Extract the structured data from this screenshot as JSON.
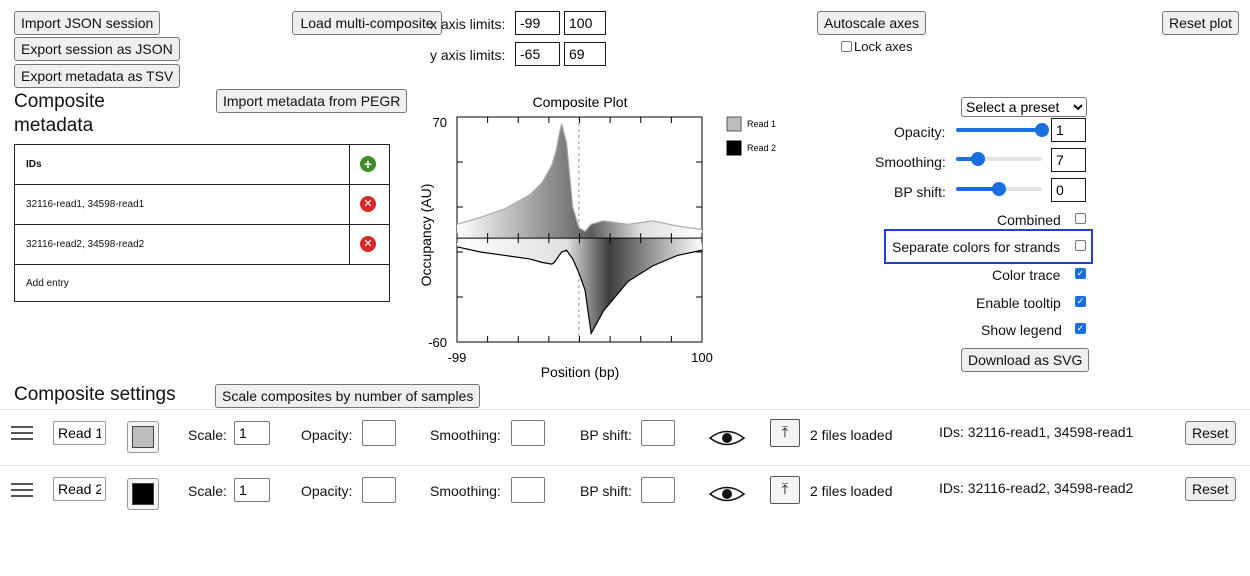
{
  "toolbar": {
    "import_json": "Import JSON session",
    "export_json": "Export session as JSON",
    "export_tsv": "Export metadata as TSV",
    "load_multi": "Load multi-composite",
    "autoscale": "Autoscale axes",
    "lock_axes": "Lock axes",
    "reset_plot": "Reset plot"
  },
  "axis_limits": {
    "x_label": "x axis limits:",
    "x_min": "-99",
    "x_max": "100",
    "y_label": "y axis limits:",
    "y_min": "-65",
    "y_max": "69"
  },
  "metadata": {
    "title": "Composite metadata",
    "import_pegr": "Import metadata from PEGR",
    "header": "IDs",
    "rows": [
      "32116-read1, 34598-read1",
      "32116-read2, 34598-read2"
    ],
    "add_entry": "Add entry"
  },
  "chart_data": {
    "type": "area",
    "title": "Composite Plot",
    "xlabel": "Position (bp)",
    "ylabel": "Occupancy (AU)",
    "xlim": [
      -99,
      100
    ],
    "ylim": [
      -60,
      70
    ],
    "x_tick_labels": [
      "-99",
      "100"
    ],
    "y_tick_labels": [
      "70",
      "-60"
    ],
    "legend_position": "right",
    "series": [
      {
        "name": "Read 1",
        "color": "#bdbdbd",
        "x": [
          -99,
          -80,
          -60,
          -40,
          -30,
          -22,
          -18,
          -16,
          -14,
          -10,
          -5,
          0,
          5,
          10,
          20,
          40,
          60,
          80,
          100
        ],
        "y": [
          8,
          12,
          17,
          25,
          32,
          42,
          52,
          60,
          66,
          55,
          18,
          6,
          4,
          8,
          10,
          8,
          10,
          7,
          5
        ]
      },
      {
        "name": "Read 2",
        "color": "#000000",
        "x": [
          -99,
          -80,
          -60,
          -40,
          -30,
          -22,
          -20,
          -18,
          -16,
          -14,
          -10,
          -5,
          0,
          5,
          10,
          20,
          40,
          60,
          80,
          100
        ],
        "y": [
          -5,
          -8,
          -10,
          -12,
          -14,
          -15,
          -14,
          -12,
          -10,
          -8,
          -7,
          -12,
          -20,
          -30,
          -55,
          -42,
          -25,
          -16,
          -10,
          -7
        ]
      }
    ]
  },
  "controls": {
    "preset": "Select a preset",
    "opacity_label": "Opacity:",
    "opacity_value": "1",
    "opacity_level": 1.0,
    "smoothing_label": "Smoothing:",
    "smoothing_value": "7",
    "smoothing_level": 0.25,
    "bpshift_label": "BP shift:",
    "bpshift_value": "0",
    "bpshift_level": 0.5,
    "combined": "Combined",
    "separate_colors": "Separate colors for strands",
    "color_trace": "Color trace",
    "enable_tooltip": "Enable tooltip",
    "show_legend": "Show legend",
    "download_svg": "Download as SVG"
  },
  "settings": {
    "title": "Composite settings",
    "scale_button": "Scale composites by number of samples",
    "rows": [
      {
        "name": "Read 1",
        "color": "#bdbdbd",
        "scale_label": "Scale:",
        "scale": "1",
        "opacity_label": "Opacity:",
        "smoothing_label": "Smoothing:",
        "bpshift_label": "BP shift:",
        "files": "2 files loaded",
        "ids": "IDs: 32116-read1, 34598-read1",
        "reset": "Reset"
      },
      {
        "name": "Read 2",
        "color": "#000000",
        "scale_label": "Scale:",
        "scale": "1",
        "opacity_label": "Opacity:",
        "smoothing_label": "Smoothing:",
        "bpshift_label": "BP shift:",
        "files": "2 files loaded",
        "ids": "IDs: 32116-read2, 34598-read2",
        "reset": "Reset"
      }
    ]
  }
}
